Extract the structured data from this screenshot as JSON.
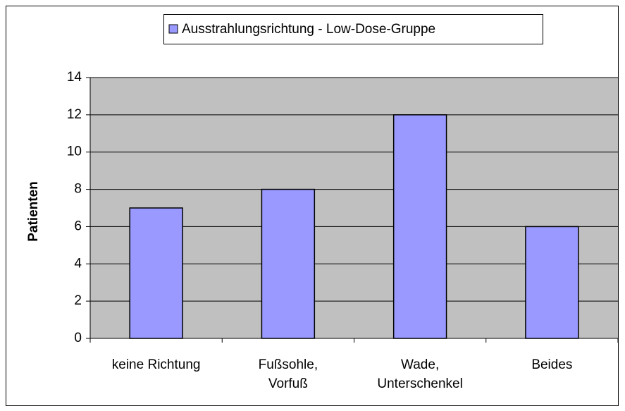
{
  "chart_data": {
    "type": "bar",
    "y_label": "Patienten",
    "categories": [
      "keine Richtung",
      "Fußsohle,\nVorfuß",
      "Wade,\nUnterschenkel",
      "Beides"
    ],
    "series": [
      {
        "name": "Ausstrahlungsrichtung - Low-Dose-Gruppe",
        "color": "#9999ff",
        "values": [
          7,
          8,
          12,
          6
        ]
      }
    ],
    "ylim": [
      0,
      14
    ],
    "yticks": [
      0,
      2,
      4,
      6,
      8,
      10,
      12,
      14
    ],
    "grid": true,
    "legend": "top"
  }
}
